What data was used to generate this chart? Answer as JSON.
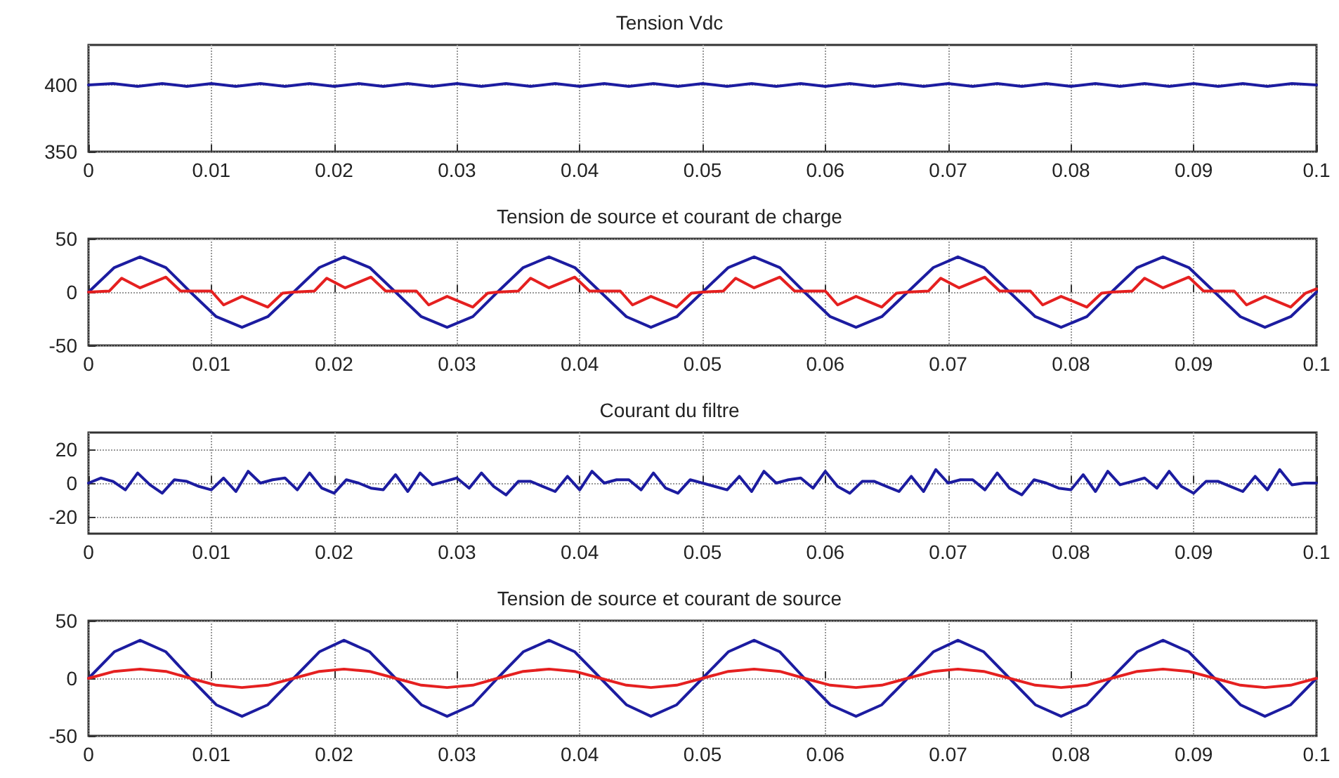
{
  "chart_data": [
    {
      "type": "line",
      "title": "Tension Vdc",
      "xlim": [
        0,
        0.1
      ],
      "xticks": [
        0,
        0.01,
        0.02,
        0.03,
        0.04,
        0.05,
        0.06,
        0.07,
        0.08,
        0.09,
        0.1
      ],
      "ylim": [
        350,
        430
      ],
      "yticks": [
        350,
        400
      ],
      "grid": true,
      "x": [
        0,
        0.002,
        0.004,
        0.006,
        0.008,
        0.01,
        0.012,
        0.014,
        0.016,
        0.018,
        0.02,
        0.022,
        0.024,
        0.026,
        0.028,
        0.03,
        0.032,
        0.034,
        0.036,
        0.038,
        0.04,
        0.042,
        0.044,
        0.046,
        0.048,
        0.05,
        0.052,
        0.054,
        0.056,
        0.058,
        0.06,
        0.062,
        0.064,
        0.066,
        0.068,
        0.07,
        0.072,
        0.074,
        0.076,
        0.078,
        0.08,
        0.082,
        0.084,
        0.086,
        0.088,
        0.09,
        0.092,
        0.094,
        0.096,
        0.098,
        0.1
      ],
      "series": [
        {
          "color": "#1c1ca0",
          "values": [
            400,
            401,
            399,
            401,
            399,
            401,
            399,
            401,
            399,
            401,
            399,
            401,
            399,
            401,
            399,
            401,
            399,
            401,
            399,
            401,
            399,
            401,
            399,
            401,
            399,
            401,
            399,
            401,
            399,
            401,
            399,
            401,
            399,
            401,
            399,
            401,
            399,
            401,
            399,
            401,
            399,
            401,
            399,
            401,
            399,
            401,
            399,
            401,
            399,
            401,
            400
          ]
        }
      ]
    },
    {
      "type": "line",
      "title": "Tension de source et courant de charge",
      "xlim": [
        0,
        0.1
      ],
      "xticks": [
        0,
        0.01,
        0.02,
        0.03,
        0.04,
        0.05,
        0.06,
        0.07,
        0.08,
        0.09,
        0.1
      ],
      "ylim": [
        -50,
        50
      ],
      "yticks": [
        -50,
        0,
        50
      ],
      "grid": true,
      "series": [
        {
          "color": "#1c1ca0",
          "x": [
            0,
            0.0021,
            0.0042,
            0.0063,
            0.0083,
            0.0104,
            0.0125,
            0.0146,
            0.0167,
            0.0188,
            0.0208,
            0.0229,
            0.025,
            0.0271,
            0.0292,
            0.0313,
            0.0333,
            0.0354,
            0.0375,
            0.0396,
            0.0417,
            0.0438,
            0.0458,
            0.0479,
            0.05,
            0.0521,
            0.0542,
            0.0563,
            0.0583,
            0.0604,
            0.0625,
            0.0646,
            0.0667,
            0.0688,
            0.0708,
            0.0729,
            0.075,
            0.0771,
            0.0792,
            0.0813,
            0.0833,
            0.0854,
            0.0875,
            0.0896,
            0.0917,
            0.0938,
            0.0958,
            0.0979,
            0.1
          ],
          "values": [
            0,
            23,
            33,
            23,
            0,
            -23,
            -33,
            -23,
            0,
            23,
            33,
            23,
            0,
            -23,
            -33,
            -23,
            0,
            23,
            33,
            23,
            0,
            -23,
            -33,
            -23,
            0,
            23,
            33,
            23,
            0,
            -23,
            -33,
            -23,
            0,
            23,
            33,
            23,
            0,
            -23,
            -33,
            -23,
            0,
            23,
            33,
            23,
            0,
            -23,
            -33,
            -23,
            0
          ]
        },
        {
          "color": "#e52020",
          "x": [
            0,
            0.0017,
            0.0027,
            0.0042,
            0.0063,
            0.0075,
            0.01,
            0.011,
            0.0125,
            0.0146,
            0.0158,
            0.0167,
            0.0184,
            0.0194,
            0.0209,
            0.023,
            0.0242,
            0.0267,
            0.0277,
            0.0292,
            0.0313,
            0.0325,
            0.0333,
            0.035,
            0.036,
            0.0375,
            0.0396,
            0.0408,
            0.0433,
            0.0443,
            0.0458,
            0.0479,
            0.0491,
            0.05,
            0.0517,
            0.0527,
            0.0542,
            0.0563,
            0.0575,
            0.06,
            0.061,
            0.0625,
            0.0646,
            0.0658,
            0.0667,
            0.0684,
            0.0694,
            0.0709,
            0.073,
            0.0742,
            0.0767,
            0.0777,
            0.0792,
            0.0813,
            0.0825,
            0.0833,
            0.085,
            0.086,
            0.0875,
            0.0896,
            0.0908,
            0.0933,
            0.0943,
            0.0958,
            0.0979,
            0.0991,
            0.1
          ],
          "values": [
            0,
            1,
            13,
            4,
            14,
            1,
            1,
            -12,
            -4,
            -14,
            -1,
            0,
            1,
            13,
            4,
            14,
            1,
            1,
            -12,
            -4,
            -14,
            -1,
            0,
            1,
            13,
            4,
            14,
            1,
            1,
            -12,
            -4,
            -14,
            -1,
            0,
            1,
            13,
            4,
            14,
            1,
            1,
            -12,
            -4,
            -14,
            -1,
            0,
            1,
            13,
            4,
            14,
            1,
            1,
            -12,
            -4,
            -14,
            -1,
            0,
            1,
            13,
            4,
            14,
            1,
            1,
            -12,
            -4,
            -14,
            -1,
            3
          ]
        }
      ]
    },
    {
      "type": "line",
      "title": "Courant du filtre",
      "xlim": [
        0,
        0.1
      ],
      "xticks": [
        0,
        0.01,
        0.02,
        0.03,
        0.04,
        0.05,
        0.06,
        0.07,
        0.08,
        0.09,
        0.1
      ],
      "ylim": [
        -30,
        30
      ],
      "yticks": [
        -20,
        0,
        20
      ],
      "grid": true,
      "x": [
        0,
        0.001,
        0.002,
        0.003,
        0.004,
        0.005,
        0.006,
        0.007,
        0.008,
        0.009,
        0.01,
        0.011,
        0.012,
        0.013,
        0.014,
        0.015,
        0.016,
        0.017,
        0.018,
        0.019,
        0.02,
        0.021,
        0.022,
        0.023,
        0.024,
        0.025,
        0.026,
        0.027,
        0.028,
        0.029,
        0.03,
        0.031,
        0.032,
        0.033,
        0.034,
        0.035,
        0.036,
        0.037,
        0.038,
        0.039,
        0.04,
        0.041,
        0.042,
        0.043,
        0.044,
        0.045,
        0.046,
        0.047,
        0.048,
        0.049,
        0.05,
        0.051,
        0.052,
        0.053,
        0.054,
        0.055,
        0.056,
        0.057,
        0.058,
        0.059,
        0.06,
        0.061,
        0.062,
        0.063,
        0.064,
        0.065,
        0.066,
        0.067,
        0.068,
        0.069,
        0.07,
        0.071,
        0.072,
        0.073,
        0.074,
        0.075,
        0.076,
        0.077,
        0.078,
        0.079,
        0.08,
        0.081,
        0.082,
        0.083,
        0.084,
        0.085,
        0.086,
        0.087,
        0.088,
        0.089,
        0.09,
        0.091,
        0.092,
        0.093,
        0.094,
        0.095,
        0.096,
        0.097,
        0.098,
        0.099,
        0.1
      ],
      "series": [
        {
          "color": "#1c1ca0",
          "values": [
            0,
            3,
            1,
            -4,
            6,
            -1,
            -6,
            2,
            1,
            -2,
            -4,
            3,
            -5,
            7,
            0,
            2,
            3,
            -4,
            6,
            -3,
            -6,
            2,
            0,
            -3,
            -4,
            5,
            -5,
            6,
            -1,
            1,
            3,
            -3,
            6,
            -2,
            -7,
            1,
            1,
            -2,
            -5,
            4,
            -4,
            7,
            0,
            2,
            2,
            -4,
            6,
            -3,
            -6,
            2,
            0,
            -2,
            -4,
            4,
            -5,
            7,
            0,
            2,
            3,
            -3,
            7,
            -2,
            -6,
            1,
            1,
            -2,
            -5,
            4,
            -5,
            8,
            0,
            2,
            2,
            -4,
            6,
            -3,
            -7,
            2,
            0,
            -3,
            -4,
            5,
            -5,
            7,
            -1,
            1,
            3,
            -3,
            7,
            -2,
            -6,
            1,
            1,
            -2,
            -5,
            4,
            -4,
            8,
            -1,
            0,
            0
          ]
        }
      ]
    },
    {
      "type": "line",
      "title": "Tension de source et courant de source",
      "xlim": [
        0,
        0.1
      ],
      "xticks": [
        0,
        0.01,
        0.02,
        0.03,
        0.04,
        0.05,
        0.06,
        0.07,
        0.08,
        0.09,
        0.1
      ],
      "ylim": [
        -50,
        50
      ],
      "yticks": [
        -50,
        0,
        50
      ],
      "grid": true,
      "x": [
        0,
        0.0021,
        0.0042,
        0.0063,
        0.0083,
        0.0104,
        0.0125,
        0.0146,
        0.0167,
        0.0188,
        0.0208,
        0.0229,
        0.025,
        0.0271,
        0.0292,
        0.0313,
        0.0333,
        0.0354,
        0.0375,
        0.0396,
        0.0417,
        0.0438,
        0.0458,
        0.0479,
        0.05,
        0.0521,
        0.0542,
        0.0563,
        0.0583,
        0.0604,
        0.0625,
        0.0646,
        0.0667,
        0.0688,
        0.0708,
        0.0729,
        0.075,
        0.0771,
        0.0792,
        0.0813,
        0.0833,
        0.0854,
        0.0875,
        0.0896,
        0.0917,
        0.0938,
        0.0958,
        0.0979,
        0.1
      ],
      "series": [
        {
          "color": "#1c1ca0",
          "values": [
            0,
            23,
            33,
            23,
            0,
            -23,
            -33,
            -23,
            0,
            23,
            33,
            23,
            0,
            -23,
            -33,
            -23,
            0,
            23,
            33,
            23,
            0,
            -23,
            -33,
            -23,
            0,
            23,
            33,
            23,
            0,
            -23,
            -33,
            -23,
            0,
            23,
            33,
            23,
            0,
            -23,
            -33,
            -23,
            0,
            23,
            33,
            23,
            0,
            -23,
            -33,
            -23,
            0
          ]
        },
        {
          "color": "#e52020",
          "values": [
            0,
            6,
            8,
            6,
            0,
            -6,
            -8,
            -6,
            0,
            6,
            8,
            6,
            0,
            -6,
            -8,
            -6,
            0,
            6,
            8,
            6,
            0,
            -6,
            -8,
            -6,
            0,
            6,
            8,
            6,
            0,
            -6,
            -8,
            -6,
            0,
            6,
            8,
            6,
            0,
            -6,
            -8,
            -6,
            0,
            6,
            8,
            6,
            0,
            -6,
            -8,
            -6,
            0
          ]
        }
      ]
    }
  ]
}
